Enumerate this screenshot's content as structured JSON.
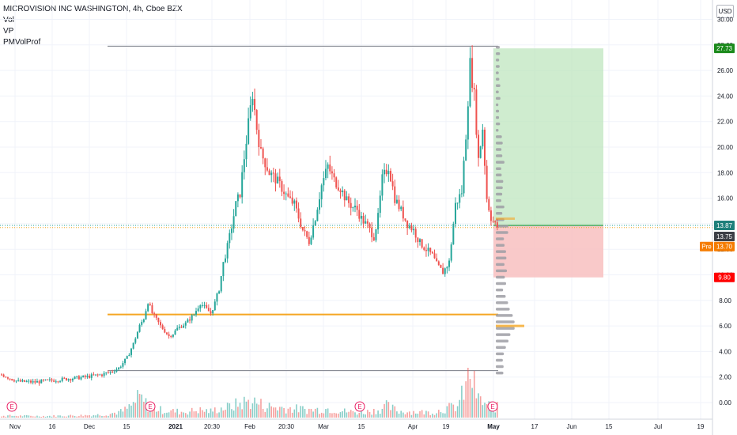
{
  "legend": {
    "title": "MICROVISION INC WASHINGTON, 4h, Cboe BZX",
    "line2": "Vol",
    "line3": "VP",
    "line4": "PMVolProf"
  },
  "currency": "USD",
  "price_tags": {
    "target": "27.73",
    "last": "13.87",
    "close": "13.75",
    "pre_label": "Pre",
    "pre_value": "13.70",
    "stop": "9.80"
  },
  "colors": {
    "up": "#26a69a",
    "down": "#ef5350",
    "orange": "#f5a623",
    "target_zone": "#bfe6bf",
    "stop_zone": "#f8c0c0",
    "tag_green": "#1b8a1b",
    "tag_red": "#ff0000",
    "tag_teal": "#1e7f7a",
    "tag_dark": "#3c3f46",
    "tag_orange": "#f57c00"
  },
  "chart_data": {
    "type": "candlestick",
    "title": "MICROVISION INC WASHINGTON, 4h, Cboe BZX",
    "ylim": [
      -1,
      31
    ],
    "y_ticks": [
      "0.00",
      "2.00",
      "4.00",
      "6.00",
      "8.00",
      "10.00",
      "12.00",
      "14.00",
      "16.00",
      "18.00",
      "20.00",
      "22.00",
      "24.00",
      "26.00",
      "28.00",
      "30.00"
    ],
    "x_ticks": [
      "Nov",
      "16",
      "Dec",
      "15",
      "2021",
      "20:30",
      "Feb",
      "20:30",
      "Mar",
      "15",
      "Apr",
      "19",
      "May",
      "17",
      "Jun",
      "15",
      "Jul",
      "19"
    ],
    "price_path": [
      [
        0,
        2.2
      ],
      [
        4,
        1.9
      ],
      [
        8,
        1.65
      ],
      [
        16,
        1.6
      ],
      [
        22,
        1.7
      ],
      [
        28,
        1.8
      ],
      [
        34,
        1.9
      ],
      [
        40,
        2.0
      ],
      [
        48,
        2.2
      ],
      [
        52,
        2.4
      ],
      [
        56,
        2.7
      ],
      [
        60,
        3.5
      ],
      [
        63,
        4.6
      ],
      [
        66,
        6.0
      ],
      [
        68,
        6.6
      ],
      [
        70,
        7.9
      ],
      [
        72,
        7.0
      ],
      [
        74,
        6.5
      ],
      [
        76,
        6.0
      ],
      [
        78,
        5.6
      ],
      [
        80,
        5.2
      ],
      [
        82,
        5.4
      ],
      [
        84,
        5.8
      ],
      [
        88,
        6.2
      ],
      [
        92,
        6.9
      ],
      [
        95,
        7.8
      ],
      [
        98,
        7.3
      ],
      [
        100,
        7.0
      ],
      [
        102,
        7.8
      ],
      [
        104,
        8.9
      ],
      [
        106,
        10.9
      ],
      [
        108,
        12.2
      ],
      [
        110,
        13.8
      ],
      [
        112,
        15.5
      ],
      [
        114,
        16.4
      ],
      [
        116,
        19.2
      ],
      [
        118,
        21.8
      ],
      [
        119,
        23.0
      ],
      [
        120,
        24.2
      ],
      [
        122,
        21.5
      ],
      [
        124,
        19.5
      ],
      [
        126,
        18.8
      ],
      [
        128,
        18.0
      ],
      [
        131,
        17.5
      ],
      [
        134,
        16.8
      ],
      [
        137,
        16.0
      ],
      [
        140,
        15.5
      ],
      [
        144,
        13.5
      ],
      [
        147,
        12.6
      ],
      [
        150,
        14.5
      ],
      [
        153,
        17.0
      ],
      [
        156,
        18.5
      ],
      [
        159,
        17.4
      ],
      [
        162,
        16.8
      ],
      [
        165,
        15.8
      ],
      [
        168,
        15.3
      ],
      [
        170,
        15.1
      ],
      [
        172,
        14.4
      ],
      [
        175,
        13.8
      ],
      [
        178,
        13.0
      ],
      [
        180,
        14.5
      ],
      [
        182,
        17.5
      ],
      [
        185,
        18.5
      ],
      [
        188,
        16.0
      ],
      [
        191,
        15.0
      ],
      [
        194,
        14.0
      ],
      [
        197,
        13.5
      ],
      [
        200,
        12.5
      ],
      [
        203,
        12.0
      ],
      [
        206,
        11.5
      ],
      [
        208,
        10.8
      ],
      [
        211,
        10.2
      ],
      [
        214,
        11.0
      ],
      [
        217,
        15.5
      ],
      [
        220,
        16.5
      ],
      [
        222,
        21.0
      ],
      [
        224,
        26.5
      ],
      [
        226,
        24.0
      ],
      [
        228,
        19.0
      ],
      [
        230,
        21.5
      ],
      [
        232,
        16.0
      ],
      [
        234,
        14.5
      ],
      [
        236,
        13.9
      ],
      [
        237,
        13.75
      ]
    ],
    "volume_path": [
      [
        0,
        0.15
      ],
      [
        20,
        0.12
      ],
      [
        40,
        0.18
      ],
      [
        50,
        0.25
      ],
      [
        58,
        0.5
      ],
      [
        62,
        0.9
      ],
      [
        66,
        1.6
      ],
      [
        70,
        0.9
      ],
      [
        76,
        0.6
      ],
      [
        82,
        0.5
      ],
      [
        88,
        0.45
      ],
      [
        94,
        0.6
      ],
      [
        100,
        0.5
      ],
      [
        104,
        0.7
      ],
      [
        108,
        0.8
      ],
      [
        112,
        1.0
      ],
      [
        116,
        1.2
      ],
      [
        120,
        1.3
      ],
      [
        126,
        0.9
      ],
      [
        132,
        0.8
      ],
      [
        140,
        0.7
      ],
      [
        148,
        0.6
      ],
      [
        156,
        0.7
      ],
      [
        164,
        0.5
      ],
      [
        172,
        0.4
      ],
      [
        180,
        0.6
      ],
      [
        184,
        0.9
      ],
      [
        190,
        0.5
      ],
      [
        198,
        0.45
      ],
      [
        206,
        0.4
      ],
      [
        212,
        0.7
      ],
      [
        218,
        0.9
      ],
      [
        222,
        2.4
      ],
      [
        224,
        3.5
      ],
      [
        228,
        1.4
      ],
      [
        232,
        1.0
      ],
      [
        237,
        0.8
      ]
    ],
    "horizontal_levels": [
      {
        "name": "top line",
        "value": 27.9
      },
      {
        "name": "orange line",
        "value": 6.9
      },
      {
        "name": "bottom line",
        "value": 2.5
      }
    ],
    "position": {
      "entry": 13.87,
      "target": 27.73,
      "stop": 9.8
    },
    "volume_profile_center": 6.2,
    "earnings_markers": 4
  }
}
